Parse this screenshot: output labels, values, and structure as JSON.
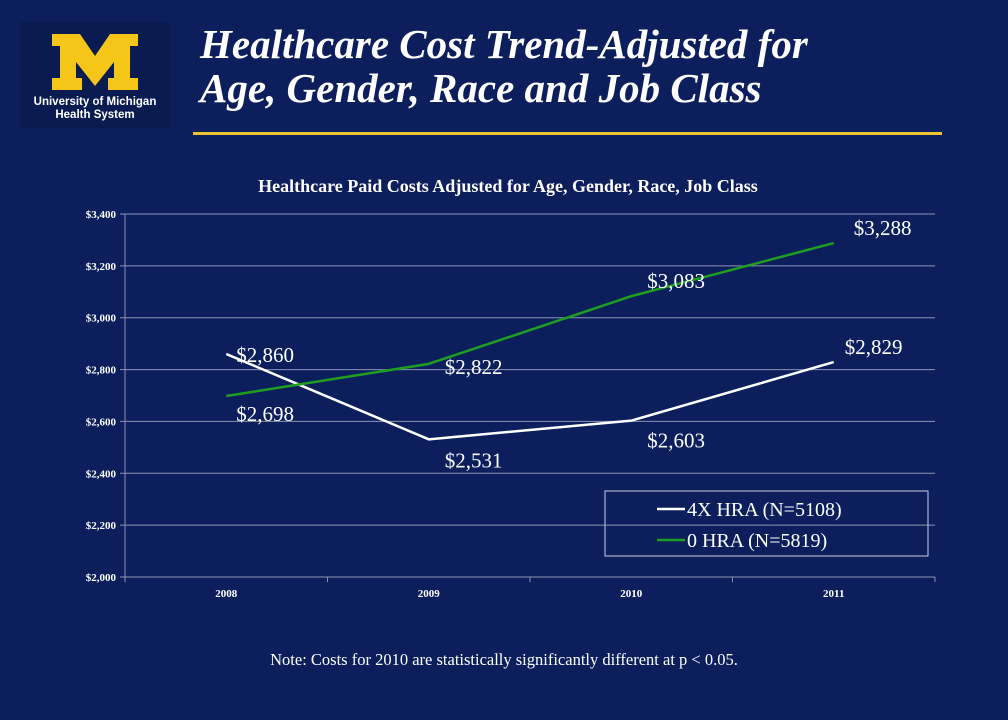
{
  "brand": {
    "logo_letter": "M",
    "name_line1": "University of Michigan",
    "name_line2": "Health System",
    "gold": "#f5c518",
    "background": "#0c1f5c"
  },
  "slide": {
    "title_line1": "Healthcare Cost Trend-Adjusted for",
    "title_line2": "Age, Gender, Race and Job Class",
    "note": "Note: Costs for 2010 are statistically significantly different at p < 0.05."
  },
  "chart_data": {
    "type": "line",
    "title": "Healthcare Paid Costs Adjusted for Age, Gender, Race, Job Class",
    "categories": [
      "2008",
      "2009",
      "2010",
      "2011"
    ],
    "ylim": [
      2000,
      3400
    ],
    "yticks": [
      2000,
      2200,
      2400,
      2600,
      2800,
      3000,
      3200,
      3400
    ],
    "ytick_labels": [
      "$2,000",
      "$2,200",
      "$2,400",
      "$2,600",
      "$2,800",
      "$3,000",
      "$3,200",
      "$3,400"
    ],
    "grid": true,
    "legend_position": "bottom-right",
    "series": [
      {
        "name": "4X HRA (N=5108)",
        "color": "#ffffff",
        "values": [
          2860,
          2531,
          2603,
          2829
        ],
        "labels": [
          "$2,860",
          "$2,531",
          "$2,603",
          "$2,829"
        ]
      },
      {
        "name": "0 HRA (N=5819)",
        "color": "#1e9e1e",
        "values": [
          2698,
          2822,
          3083,
          3288
        ],
        "labels": [
          "$2,698",
          "$2,822",
          "$3,083",
          "$3,288"
        ]
      }
    ]
  }
}
